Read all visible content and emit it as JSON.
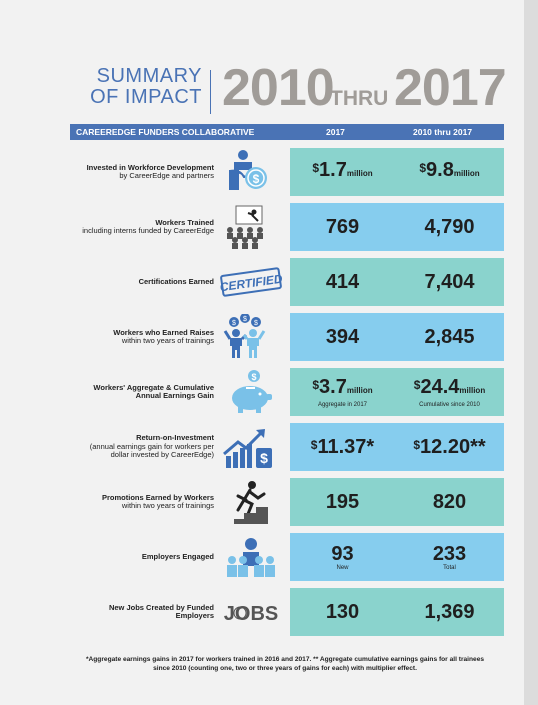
{
  "header": {
    "summary_line1": "SUMMARY",
    "summary_line2": "OF IMPACT",
    "year_start": "2010",
    "thru": "THRU",
    "year_end": "2017"
  },
  "bar": {
    "org": "CAREEREDGE FUNDERS COLLABORATIVE",
    "col1": "2017",
    "col2": "2010 thru 2017"
  },
  "rows": [
    {
      "title": "Invested in Workforce Development",
      "desc": "by CareerEdge and partners",
      "icon": "money-hand-icon",
      "v1_prefix": "$",
      "v1": "1.7",
      "v1_unit": "million",
      "v2_prefix": "$",
      "v2": "9.8",
      "v2_unit": "million"
    },
    {
      "title": "Workers Trained",
      "desc": "including interns funded by CareerEdge",
      "icon": "classroom-presentation-icon",
      "v1": "769",
      "v2": "4,790"
    },
    {
      "title": "Certifications Earned",
      "desc": "",
      "icon": "certified-stamp-icon",
      "icon_text": "CERTIFIED",
      "v1": "414",
      "v2": "7,404"
    },
    {
      "title": "Workers who Earned Raises",
      "desc": "within two years of trainings",
      "icon": "people-coins-icon",
      "v1": "394",
      "v2": "2,845"
    },
    {
      "title": "Workers' Aggregate & Cumulative Annual Earnings Gain",
      "desc": "",
      "icon": "piggy-bank-icon",
      "v1_prefix": "$",
      "v1": "3.7",
      "v1_unit": "million",
      "v1_sub": "Aggregate in 2017",
      "v2_prefix": "$",
      "v2": "24.4",
      "v2_unit": "million",
      "v2_sub": "Cumulative since 2010"
    },
    {
      "title": "Return-on-Investment",
      "desc": "(annual earnings gain for workers per dollar invested by CareerEdge)",
      "icon": "growth-chart-icon",
      "v1_prefix": "$",
      "v1": "11.37",
      "v1_suffix": "*",
      "v2_prefix": "$",
      "v2": "12.20",
      "v2_suffix": "**"
    },
    {
      "title": "Promotions Earned by Workers",
      "desc": "within two years of trainings",
      "icon": "stairs-climber-icon",
      "v1": "195",
      "v2": "820"
    },
    {
      "title": "Employers Engaged",
      "desc": "",
      "icon": "business-group-icon",
      "v1": "93",
      "v1_sub": "New",
      "v2": "233",
      "v2_sub": "Total"
    },
    {
      "title": "New Jobs Created by Funded Employers",
      "desc": "",
      "icon": "jobs-text-icon",
      "icon_text": "JOBS",
      "v1": "130",
      "v2": "1,369"
    }
  ],
  "footnote": "*Aggregate earnings gains in 2017 for workers trained in 2016 and 2017. ** Aggregate cumulative earnings gains for all trainees since 2010 (counting one, two or three years of gains for each) with multiplier effect.",
  "colors": {
    "blue": "#4a73b5",
    "teal": "#8ad3cd",
    "sky": "#86cdee",
    "gray": "#a09c98"
  }
}
